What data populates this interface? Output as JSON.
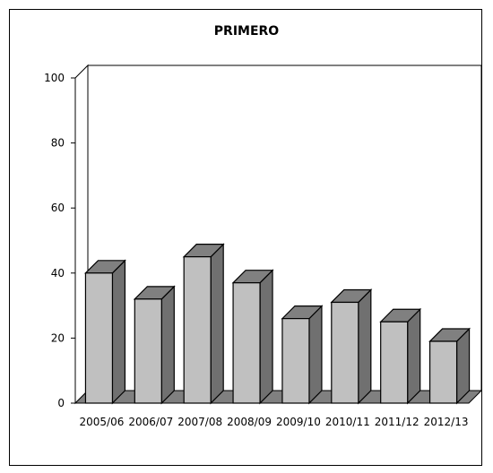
{
  "chart_data": {
    "type": "bar",
    "title": "PRIMERO",
    "categories": [
      "2005/06",
      "2006/07",
      "2007/08",
      "2008/09",
      "2009/10",
      "2010/11",
      "2011/12",
      "2012/13"
    ],
    "values": [
      40,
      32,
      45,
      37,
      26,
      31,
      25,
      19
    ],
    "ylim": [
      0,
      100
    ],
    "yticks": [
      0,
      20,
      40,
      60,
      80,
      100
    ],
    "xlabel": "",
    "ylabel": "",
    "grid": false,
    "three_d": true,
    "colors": {
      "bar_front": "#c0c0c0",
      "bar_top": "#808080",
      "bar_side": "#707070",
      "floor": "#808080",
      "outline": "#000000"
    }
  }
}
